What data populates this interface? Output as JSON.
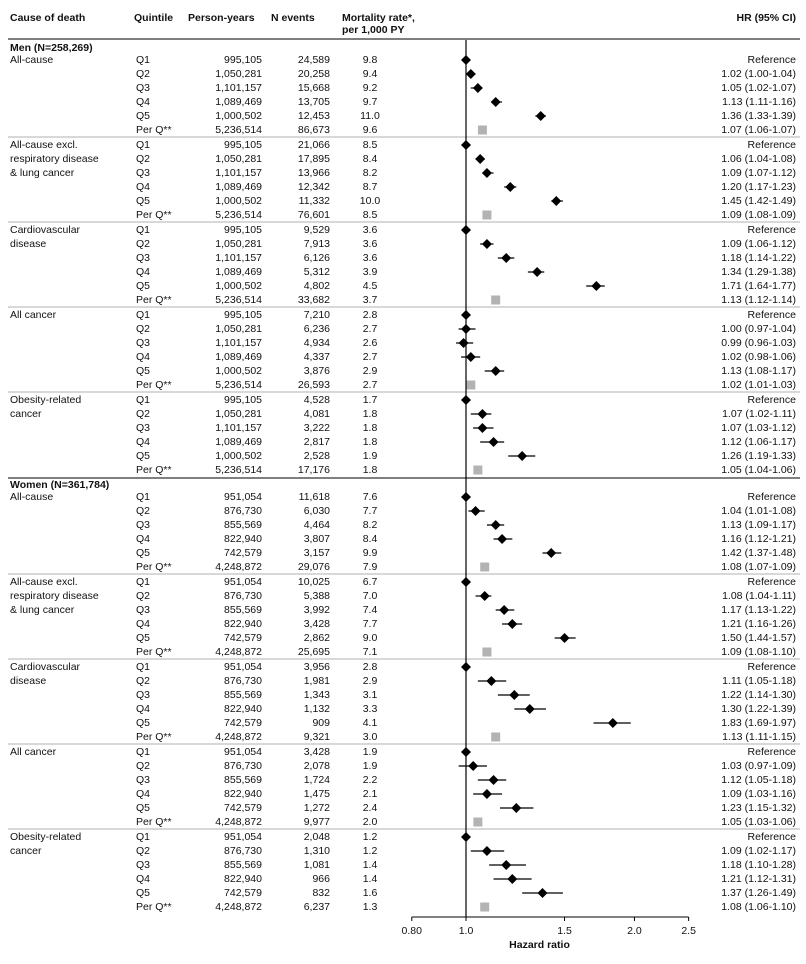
{
  "chart_data": {
    "type": "forest",
    "columns": [
      {
        "lines": [
          "Cause of death"
        ]
      },
      {
        "lines": [
          "Quintile"
        ]
      },
      {
        "lines": [
          "Person-years"
        ]
      },
      {
        "lines": [
          "N events"
        ]
      },
      {
        "lines": [
          "Mortality rate*,",
          "per 1,000 PY"
        ]
      },
      {
        "lines": [
          "HR (95% CI)"
        ]
      }
    ],
    "xlabel": "Hazard ratio",
    "log_scale": true,
    "xlim": [
      0.8,
      2.5
    ],
    "xticks": [
      {
        "value": 0.8,
        "label": "0.80"
      },
      {
        "value": 1,
        "label": "1.0"
      },
      1.5,
      {
        "value": 2,
        "label": "2.0"
      },
      2.5
    ],
    "reference_line": 1,
    "color": "#000000",
    "trend_color": "#b3b3b3",
    "groups": [
      {
        "name": "Men (N=258,269)",
        "causes": [
          {
            "lines": [
              "All-cause"
            ],
            "rows": [
              {
                "q": "Q1",
                "py": "995,105",
                "n": "24,589",
                "rate": "9.8",
                "hr": 1,
                "label": "Reference"
              },
              {
                "q": "Q2",
                "py": "1,050,281",
                "n": "20,258",
                "rate": "9.4",
                "hr": 1.02,
                "lo": 1.0,
                "hi": 1.04,
                "label": "1.02 (1.00-1.04)"
              },
              {
                "q": "Q3",
                "py": "1,101,157",
                "n": "15,668",
                "rate": "9.2",
                "hr": 1.05,
                "lo": 1.02,
                "hi": 1.07,
                "label": "1.05 (1.02-1.07)"
              },
              {
                "q": "Q4",
                "py": "1,089,469",
                "n": "13,705",
                "rate": "9.7",
                "hr": 1.13,
                "lo": 1.11,
                "hi": 1.16,
                "label": "1.13 (1.11-1.16)"
              },
              {
                "q": "Q5",
                "py": "1,000,502",
                "n": "12,453",
                "rate": "11.0",
                "hr": 1.36,
                "lo": 1.33,
                "hi": 1.39,
                "label": "1.36 (1.33-1.39)"
              },
              {
                "q": "Per Q**",
                "py": "5,236,514",
                "n": "86,673",
                "rate": "9.6",
                "hr": 1.07,
                "lo": 1.06,
                "hi": 1.07,
                "label": "1.07 (1.06-1.07)"
              }
            ]
          },
          {
            "lines": [
              "All-cause excl.",
              "respiratory disease",
              "& lung cancer"
            ],
            "rows": [
              {
                "q": "Q1",
                "py": "995,105",
                "n": "21,066",
                "rate": "8.5",
                "hr": 1,
                "label": "Reference"
              },
              {
                "q": "Q2",
                "py": "1,050,281",
                "n": "17,895",
                "rate": "8.4",
                "hr": 1.06,
                "lo": 1.04,
                "hi": 1.08,
                "label": "1.06 (1.04-1.08)"
              },
              {
                "q": "Q3",
                "py": "1,101,157",
                "n": "13,966",
                "rate": "8.2",
                "hr": 1.09,
                "lo": 1.07,
                "hi": 1.12,
                "label": "1.09 (1.07-1.12)"
              },
              {
                "q": "Q4",
                "py": "1,089,469",
                "n": "12,342",
                "rate": "8.7",
                "hr": 1.2,
                "lo": 1.17,
                "hi": 1.23,
                "label": "1.20 (1.17-1.23)"
              },
              {
                "q": "Q5",
                "py": "1,000,502",
                "n": "11,332",
                "rate": "10.0",
                "hr": 1.45,
                "lo": 1.42,
                "hi": 1.49,
                "label": "1.45 (1.42-1.49)"
              },
              {
                "q": "Per Q**",
                "py": "5,236,514",
                "n": "76,601",
                "rate": "8.5",
                "hr": 1.09,
                "lo": 1.08,
                "hi": 1.09,
                "label": "1.09 (1.08-1.09)"
              }
            ]
          },
          {
            "lines": [
              "Cardiovascular",
              "disease"
            ],
            "rows": [
              {
                "q": "Q1",
                "py": "995,105",
                "n": "9,529",
                "rate": "3.6",
                "hr": 1,
                "label": "Reference"
              },
              {
                "q": "Q2",
                "py": "1,050,281",
                "n": "7,913",
                "rate": "3.6",
                "hr": 1.09,
                "lo": 1.06,
                "hi": 1.12,
                "label": "1.09 (1.06-1.12)"
              },
              {
                "q": "Q3",
                "py": "1,101,157",
                "n": "6,126",
                "rate": "3.6",
                "hr": 1.18,
                "lo": 1.14,
                "hi": 1.22,
                "label": "1.18 (1.14-1.22)"
              },
              {
                "q": "Q4",
                "py": "1,089,469",
                "n": "5,312",
                "rate": "3.9",
                "hr": 1.34,
                "lo": 1.29,
                "hi": 1.38,
                "label": "1.34 (1.29-1.38)"
              },
              {
                "q": "Q5",
                "py": "1,000,502",
                "n": "4,802",
                "rate": "4.5",
                "hr": 1.71,
                "lo": 1.64,
                "hi": 1.77,
                "label": "1.71 (1.64-1.77)"
              },
              {
                "q": "Per Q**",
                "py": "5,236,514",
                "n": "33,682",
                "rate": "3.7",
                "hr": 1.13,
                "lo": 1.12,
                "hi": 1.14,
                "label": "1.13 (1.12-1.14)"
              }
            ]
          },
          {
            "lines": [
              "All cancer"
            ],
            "rows": [
              {
                "q": "Q1",
                "py": "995,105",
                "n": "7,210",
                "rate": "2.8",
                "hr": 1,
                "label": "Reference"
              },
              {
                "q": "Q2",
                "py": "1,050,281",
                "n": "6,236",
                "rate": "2.7",
                "hr": 1.0,
                "lo": 0.97,
                "hi": 1.04,
                "label": "1.00 (0.97-1.04)"
              },
              {
                "q": "Q3",
                "py": "1,101,157",
                "n": "4,934",
                "rate": "2.6",
                "hr": 0.99,
                "lo": 0.96,
                "hi": 1.03,
                "label": "0.99 (0.96-1.03)"
              },
              {
                "q": "Q4",
                "py": "1,089,469",
                "n": "4,337",
                "rate": "2.7",
                "hr": 1.02,
                "lo": 0.98,
                "hi": 1.06,
                "label": "1.02 (0.98-1.06)"
              },
              {
                "q": "Q5",
                "py": "1,000,502",
                "n": "3,876",
                "rate": "2.9",
                "hr": 1.13,
                "lo": 1.08,
                "hi": 1.17,
                "label": "1.13 (1.08-1.17)"
              },
              {
                "q": "Per Q**",
                "py": "5,236,514",
                "n": "26,593",
                "rate": "2.7",
                "hr": 1.02,
                "lo": 1.01,
                "hi": 1.03,
                "label": "1.02 (1.01-1.03)"
              }
            ]
          },
          {
            "lines": [
              "Obesity-related",
              "cancer"
            ],
            "rows": [
              {
                "q": "Q1",
                "py": "995,105",
                "n": "4,528",
                "rate": "1.7",
                "hr": 1,
                "label": "Reference"
              },
              {
                "q": "Q2",
                "py": "1,050,281",
                "n": "4,081",
                "rate": "1.8",
                "hr": 1.07,
                "lo": 1.02,
                "hi": 1.11,
                "label": "1.07 (1.02-1.11)"
              },
              {
                "q": "Q3",
                "py": "1,101,157",
                "n": "3,222",
                "rate": "1.8",
                "hr": 1.07,
                "lo": 1.03,
                "hi": 1.12,
                "label": "1.07 (1.03-1.12)"
              },
              {
                "q": "Q4",
                "py": "1,089,469",
                "n": "2,817",
                "rate": "1.8",
                "hr": 1.12,
                "lo": 1.06,
                "hi": 1.17,
                "label": "1.12 (1.06-1.17)"
              },
              {
                "q": "Q5",
                "py": "1,000,502",
                "n": "2,528",
                "rate": "1.9",
                "hr": 1.26,
                "lo": 1.19,
                "hi": 1.33,
                "label": "1.26 (1.19-1.33)"
              },
              {
                "q": "Per Q**",
                "py": "5,236,514",
                "n": "17,176",
                "rate": "1.8",
                "hr": 1.05,
                "lo": 1.04,
                "hi": 1.06,
                "label": "1.05 (1.04-1.06)"
              }
            ]
          }
        ]
      },
      {
        "name": "Women (N=361,784)",
        "causes": [
          {
            "lines": [
              "All-cause"
            ],
            "rows": [
              {
                "q": "Q1",
                "py": "951,054",
                "n": "11,618",
                "rate": "7.6",
                "hr": 1,
                "label": "Reference"
              },
              {
                "q": "Q2",
                "py": "876,730",
                "n": "6,030",
                "rate": "7.7",
                "hr": 1.04,
                "lo": 1.01,
                "hi": 1.08,
                "label": "1.04 (1.01-1.08)"
              },
              {
                "q": "Q3",
                "py": "855,569",
                "n": "4,464",
                "rate": "8.2",
                "hr": 1.13,
                "lo": 1.09,
                "hi": 1.17,
                "label": "1.13 (1.09-1.17)"
              },
              {
                "q": "Q4",
                "py": "822,940",
                "n": "3,807",
                "rate": "8.4",
                "hr": 1.16,
                "lo": 1.12,
                "hi": 1.21,
                "label": "1.16 (1.12-1.21)"
              },
              {
                "q": "Q5",
                "py": "742,579",
                "n": "3,157",
                "rate": "9.9",
                "hr": 1.42,
                "lo": 1.37,
                "hi": 1.48,
                "label": "1.42 (1.37-1.48)"
              },
              {
                "q": "Per Q**",
                "py": "4,248,872",
                "n": "29,076",
                "rate": "7.9",
                "hr": 1.08,
                "lo": 1.07,
                "hi": 1.09,
                "label": "1.08 (1.07-1.09)"
              }
            ]
          },
          {
            "lines": [
              "All-cause excl.",
              "respiratory disease",
              "& lung cancer"
            ],
            "rows": [
              {
                "q": "Q1",
                "py": "951,054",
                "n": "10,025",
                "rate": "6.7",
                "hr": 1,
                "label": "Reference"
              },
              {
                "q": "Q2",
                "py": "876,730",
                "n": "5,388",
                "rate": "7.0",
                "hr": 1.08,
                "lo": 1.04,
                "hi": 1.11,
                "label": "1.08 (1.04-1.11)"
              },
              {
                "q": "Q3",
                "py": "855,569",
                "n": "3,992",
                "rate": "7.4",
                "hr": 1.17,
                "lo": 1.13,
                "hi": 1.22,
                "label": "1.17 (1.13-1.22)"
              },
              {
                "q": "Q4",
                "py": "822,940",
                "n": "3,428",
                "rate": "7.7",
                "hr": 1.21,
                "lo": 1.16,
                "hi": 1.26,
                "label": "1.21 (1.16-1.26)"
              },
              {
                "q": "Q5",
                "py": "742,579",
                "n": "2,862",
                "rate": "9.0",
                "hr": 1.5,
                "lo": 1.44,
                "hi": 1.57,
                "label": "1.50 (1.44-1.57)"
              },
              {
                "q": "Per Q**",
                "py": "4,248,872",
                "n": "25,695",
                "rate": "7.1",
                "hr": 1.09,
                "lo": 1.08,
                "hi": 1.1,
                "label": "1.09 (1.08-1.10)"
              }
            ]
          },
          {
            "lines": [
              "Cardiovascular",
              "disease"
            ],
            "rows": [
              {
                "q": "Q1",
                "py": "951,054",
                "n": "3,956",
                "rate": "2.8",
                "hr": 1,
                "label": "Reference"
              },
              {
                "q": "Q2",
                "py": "876,730",
                "n": "1,981",
                "rate": "2.9",
                "hr": 1.11,
                "lo": 1.05,
                "hi": 1.18,
                "label": "1.11 (1.05-1.18)"
              },
              {
                "q": "Q3",
                "py": "855,569",
                "n": "1,343",
                "rate": "3.1",
                "hr": 1.22,
                "lo": 1.14,
                "hi": 1.3,
                "label": "1.22 (1.14-1.30)"
              },
              {
                "q": "Q4",
                "py": "822,940",
                "n": "1,132",
                "rate": "3.3",
                "hr": 1.3,
                "lo": 1.22,
                "hi": 1.39,
                "label": "1.30 (1.22-1.39)"
              },
              {
                "q": "Q5",
                "py": "742,579",
                "n": "909",
                "rate": "4.1",
                "hr": 1.83,
                "lo": 1.69,
                "hi": 1.97,
                "label": "1.83 (1.69-1.97)"
              },
              {
                "q": "Per Q**",
                "py": "4,248,872",
                "n": "9,321",
                "rate": "3.0",
                "hr": 1.13,
                "lo": 1.11,
                "hi": 1.15,
                "label": "1.13 (1.11-1.15)"
              }
            ]
          },
          {
            "lines": [
              "All cancer"
            ],
            "rows": [
              {
                "q": "Q1",
                "py": "951,054",
                "n": "3,428",
                "rate": "1.9",
                "hr": 1,
                "label": "Reference"
              },
              {
                "q": "Q2",
                "py": "876,730",
                "n": "2,078",
                "rate": "1.9",
                "hr": 1.03,
                "lo": 0.97,
                "hi": 1.09,
                "label": "1.03 (0.97-1.09)"
              },
              {
                "q": "Q3",
                "py": "855,569",
                "n": "1,724",
                "rate": "2.2",
                "hr": 1.12,
                "lo": 1.05,
                "hi": 1.18,
                "label": "1.12 (1.05-1.18)"
              },
              {
                "q": "Q4",
                "py": "822,940",
                "n": "1,475",
                "rate": "2.1",
                "hr": 1.09,
                "lo": 1.03,
                "hi": 1.16,
                "label": "1.09 (1.03-1.16)"
              },
              {
                "q": "Q5",
                "py": "742,579",
                "n": "1,272",
                "rate": "2.4",
                "hr": 1.23,
                "lo": 1.15,
                "hi": 1.32,
                "label": "1.23 (1.15-1.32)"
              },
              {
                "q": "Per Q**",
                "py": "4,248,872",
                "n": "9,977",
                "rate": "2.0",
                "hr": 1.05,
                "lo": 1.03,
                "hi": 1.06,
                "label": "1.05 (1.03-1.06)"
              }
            ]
          },
          {
            "lines": [
              "Obesity-related",
              "cancer"
            ],
            "rows": [
              {
                "q": "Q1",
                "py": "951,054",
                "n": "2,048",
                "rate": "1.2",
                "hr": 1,
                "label": "Reference"
              },
              {
                "q": "Q2",
                "py": "876,730",
                "n": "1,310",
                "rate": "1.2",
                "hr": 1.09,
                "lo": 1.02,
                "hi": 1.17,
                "label": "1.09 (1.02-1.17)"
              },
              {
                "q": "Q3",
                "py": "855,569",
                "n": "1,081",
                "rate": "1.4",
                "hr": 1.18,
                "lo": 1.1,
                "hi": 1.28,
                "label": "1.18 (1.10-1.28)"
              },
              {
                "q": "Q4",
                "py": "822,940",
                "n": "966",
                "rate": "1.4",
                "hr": 1.21,
                "lo": 1.12,
                "hi": 1.31,
                "label": "1.21 (1.12-1.31)"
              },
              {
                "q": "Q5",
                "py": "742,579",
                "n": "832",
                "rate": "1.6",
                "hr": 1.37,
                "lo": 1.26,
                "hi": 1.49,
                "label": "1.37 (1.26-1.49)"
              },
              {
                "q": "Per Q**",
                "py": "4,248,872",
                "n": "6,237",
                "rate": "1.3",
                "hr": 1.08,
                "lo": 1.06,
                "hi": 1.1,
                "label": "1.08 (1.06-1.10)"
              }
            ]
          }
        ]
      }
    ]
  }
}
